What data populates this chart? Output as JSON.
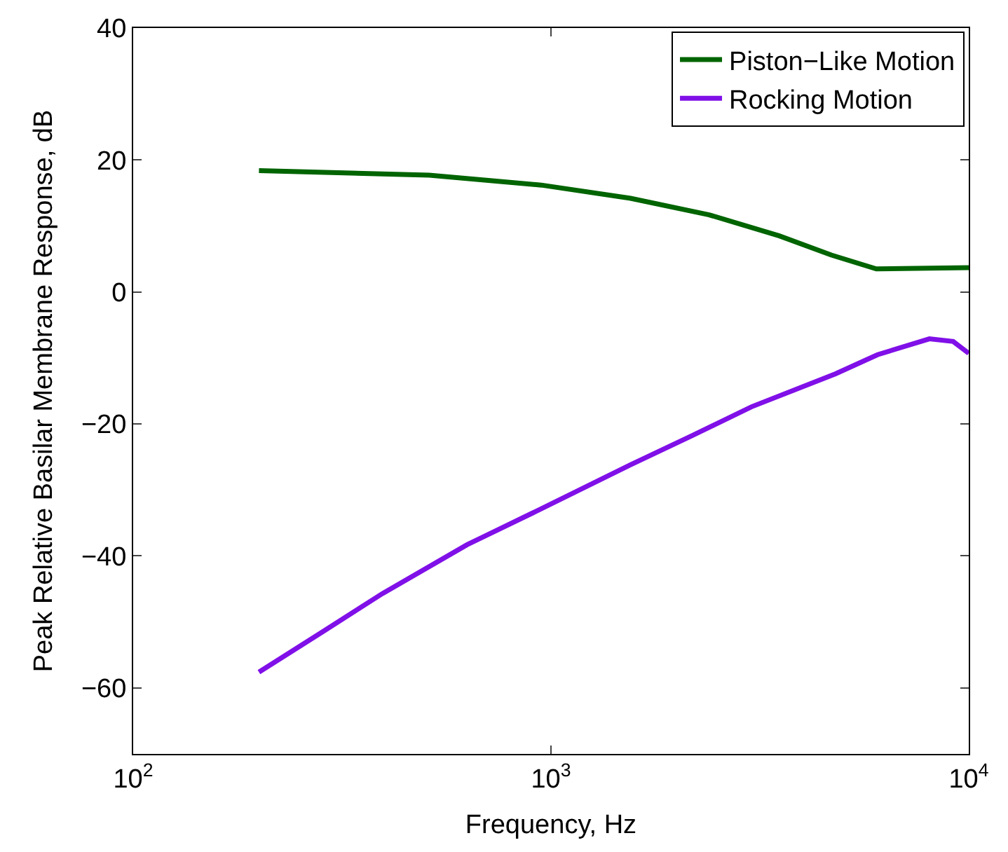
{
  "chart_data": {
    "type": "line",
    "xlabel": "Frequency, Hz",
    "ylabel": "Peak Relative Basilar Membrane Response, dB",
    "log": "x",
    "xlim": [
      100,
      10000
    ],
    "xticks": [
      {
        "value": 100,
        "label": "10$^{2}$"
      },
      {
        "value": 1000,
        "label": "10$^{3}$"
      },
      {
        "value": 10000,
        "label": "10$^{4}$"
      }
    ],
    "ylim": [
      -70,
      40
    ],
    "yticks": [
      -60,
      -40,
      -20,
      0,
      20,
      40
    ],
    "legend": "top right",
    "marker": "none",
    "line_style": "solid",
    "series": [
      {
        "name": "Piston−Like Motion",
        "color": "#006400",
        "x": [
          200,
          511,
          948,
          1550,
          2390,
          3520,
          4690,
          6010,
          10000
        ],
        "values": [
          18.4,
          17.7,
          16.2,
          14.2,
          11.7,
          8.5,
          5.6,
          3.5,
          3.7
        ]
      },
      {
        "name": "Rocking Motion",
        "color": "#8010e8",
        "x": [
          200,
          284,
          395,
          630,
          903,
          1550,
          2170,
          3020,
          4800,
          6050,
          8050,
          9180,
          10000
        ],
        "values": [
          -57.6,
          -51.5,
          -45.7,
          -38.3,
          -33.5,
          -26.2,
          -21.8,
          -17.4,
          -12.4,
          -9.5,
          -7.1,
          -7.5,
          -9.3
        ]
      }
    ]
  }
}
